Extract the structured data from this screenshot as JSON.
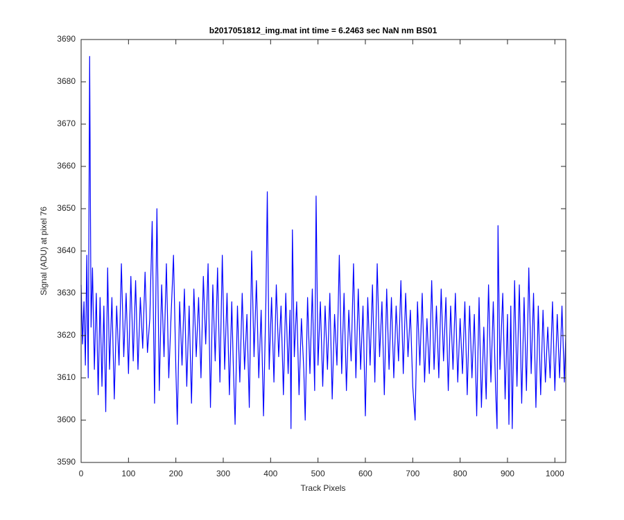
{
  "chart_data": {
    "type": "line",
    "title": "b2017051812_img.mat int time = 6.2463 sec  NaN nm BS01",
    "x_label": "Track Pixels",
    "y_label": "Signal (ADU) at pixel 76",
    "xlim": [
      0,
      1023
    ],
    "ylim": [
      3590,
      3690
    ],
    "xticks": [
      0,
      100,
      200,
      300,
      400,
      500,
      600,
      700,
      800,
      900,
      1000
    ],
    "yticks": [
      3590,
      3600,
      3610,
      3620,
      3630,
      3640,
      3650,
      3660,
      3670,
      3680,
      3690
    ],
    "grid": false,
    "series": [
      {
        "color": "#0000ff",
        "x": [
          0,
          3,
          6,
          9,
          12,
          15,
          18,
          21,
          24,
          28,
          32,
          36,
          40,
          44,
          48,
          52,
          56,
          60,
          65,
          70,
          75,
          80,
          85,
          90,
          95,
          100,
          105,
          110,
          115,
          120,
          125,
          130,
          135,
          140,
          145,
          150,
          155,
          160,
          165,
          170,
          175,
          180,
          185,
          190,
          195,
          200,
          203,
          208,
          213,
          218,
          223,
          228,
          233,
          238,
          243,
          248,
          253,
          258,
          263,
          268,
          273,
          278,
          283,
          288,
          293,
          298,
          303,
          308,
          313,
          318,
          321,
          325,
          330,
          335,
          340,
          345,
          350,
          355,
          360,
          365,
          370,
          375,
          380,
          385,
          390,
          393,
          397,
          402,
          407,
          412,
          417,
          422,
          427,
          432,
          437,
          441,
          443,
          446,
          450,
          455,
          460,
          465,
          470,
          473,
          478,
          483,
          488,
          493,
          496,
          500,
          505,
          510,
          515,
          520,
          525,
          530,
          535,
          540,
          545,
          550,
          555,
          560,
          565,
          570,
          575,
          580,
          585,
          590,
          595,
          600,
          605,
          610,
          615,
          620,
          625,
          630,
          635,
          640,
          645,
          650,
          655,
          660,
          665,
          670,
          675,
          680,
          685,
          690,
          695,
          700,
          705,
          710,
          715,
          720,
          725,
          730,
          735,
          740,
          745,
          750,
          755,
          760,
          765,
          770,
          775,
          780,
          785,
          790,
          795,
          800,
          805,
          810,
          815,
          820,
          825,
          830,
          835,
          840,
          845,
          850,
          855,
          860,
          865,
          870,
          875,
          878,
          880,
          884,
          890,
          895,
          900,
          903,
          907,
          910,
          915,
          920,
          925,
          930,
          935,
          940,
          945,
          950,
          955,
          960,
          965,
          970,
          975,
          980,
          985,
          990,
          995,
          1000,
          1005,
          1010,
          1015,
          1020,
          1023
        ],
        "values": [
          3632,
          3618,
          3628,
          3613,
          3639,
          3610,
          3686,
          3622,
          3636,
          3612,
          3630,
          3606,
          3629,
          3608,
          3627,
          3602,
          3636,
          3612,
          3629,
          3605,
          3627,
          3613,
          3637,
          3615,
          3630,
          3611,
          3634,
          3614,
          3633,
          3612,
          3629,
          3617,
          3635,
          3616,
          3624,
          3647,
          3604,
          3650,
          3607,
          3632,
          3615,
          3637,
          3610,
          3625,
          3639,
          3612,
          3599,
          3628,
          3613,
          3631,
          3608,
          3627,
          3604,
          3631,
          3615,
          3629,
          3610,
          3634,
          3618,
          3637,
          3603,
          3632,
          3614,
          3636,
          3609,
          3639,
          3612,
          3630,
          3606,
          3628,
          3614,
          3599,
          3627,
          3609,
          3630,
          3612,
          3625,
          3603,
          3640,
          3615,
          3633,
          3610,
          3626,
          3601,
          3628,
          3654,
          3612,
          3629,
          3609,
          3632,
          3615,
          3627,
          3606,
          3630,
          3611,
          3626,
          3598,
          3645,
          3615,
          3628,
          3606,
          3624,
          3612,
          3600,
          3629,
          3611,
          3631,
          3607,
          3653,
          3613,
          3628,
          3608,
          3627,
          3612,
          3630,
          3605,
          3625,
          3613,
          3639,
          3611,
          3630,
          3607,
          3626,
          3614,
          3637,
          3610,
          3631,
          3612,
          3627,
          3601,
          3629,
          3613,
          3632,
          3609,
          3637,
          3615,
          3628,
          3606,
          3631,
          3612,
          3629,
          3610,
          3627,
          3614,
          3633,
          3611,
          3630,
          3615,
          3626,
          3608,
          3600,
          3628,
          3613,
          3630,
          3609,
          3624,
          3611,
          3633,
          3612,
          3627,
          3610,
          3631,
          3614,
          3629,
          3607,
          3627,
          3612,
          3630,
          3609,
          3624,
          3611,
          3628,
          3606,
          3627,
          3610,
          3625,
          3601,
          3629,
          3603,
          3622,
          3605,
          3632,
          3609,
          3628,
          3607,
          3598,
          3646,
          3612,
          3630,
          3605,
          3625,
          3599,
          3627,
          3598,
          3633,
          3608,
          3632,
          3604,
          3629,
          3607,
          3636,
          3611,
          3630,
          3603,
          3627,
          3606,
          3626,
          3609,
          3622,
          3610,
          3628,
          3607,
          3625,
          3610,
          3627,
          3609,
          3620
        ]
      }
    ]
  }
}
